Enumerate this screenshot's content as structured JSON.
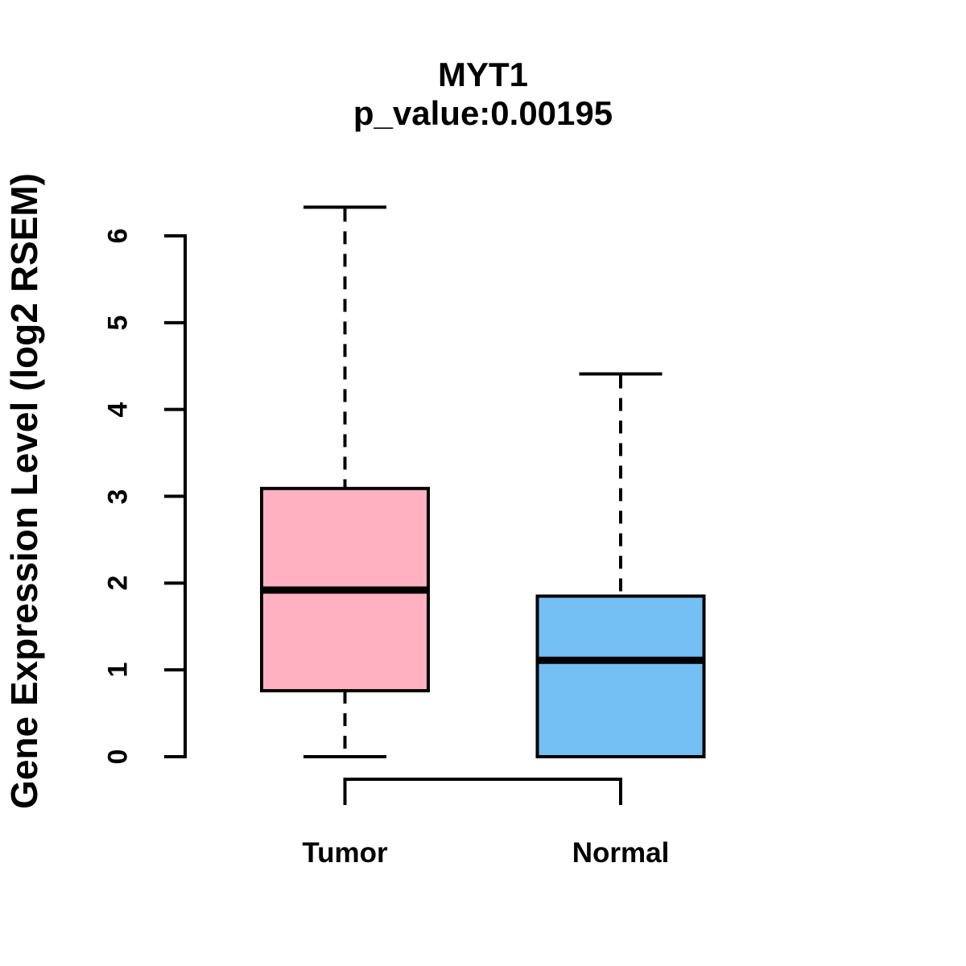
{
  "figure": {
    "title": "MYT1",
    "subtitle": "p_value:0.00195",
    "gene": "MYT1",
    "p_value": "0.00195"
  },
  "chart_data": {
    "type": "boxplot",
    "title": "MYT1",
    "subtitle": "p_value:0.00195",
    "xlabel": "",
    "ylabel": "Gene Expression Level (log2 RSEM)",
    "categories": [
      "Tumor",
      "Normal"
    ],
    "yticks": [
      0,
      1,
      2,
      3,
      4,
      5,
      6
    ],
    "ylim": [
      0,
      6.4
    ],
    "grid": false,
    "legend": "none",
    "series": [
      {
        "name": "Tumor",
        "color": "#FFB1C1",
        "whisker_low": 0.0,
        "q1": 0.76,
        "median": 1.92,
        "q3": 3.09,
        "whisker_high": 6.33
      },
      {
        "name": "Normal",
        "color": "#74BFF4",
        "whisker_low": 0.0,
        "q1": 0.0,
        "median": 1.11,
        "q3": 1.85,
        "whisker_high": 4.41
      }
    ],
    "style": {
      "line_color": "#000000",
      "background": "#ffffff",
      "whisker_linestyle": "dashed"
    }
  }
}
